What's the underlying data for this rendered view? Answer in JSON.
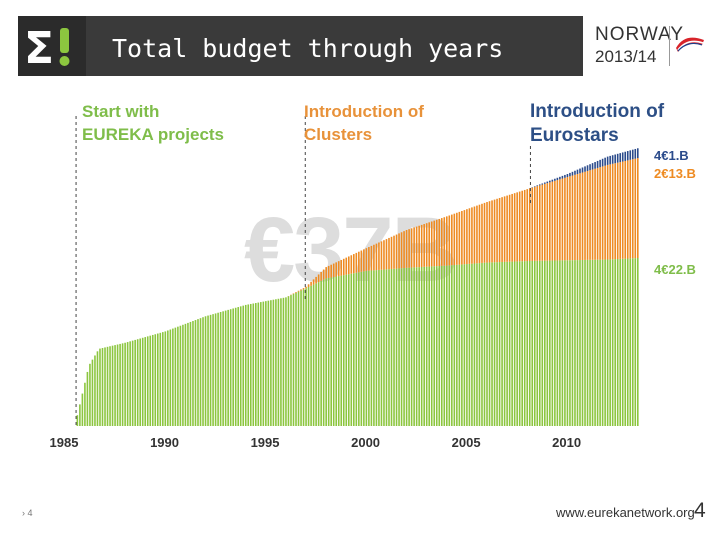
{
  "header": {
    "title": "Total budget through years",
    "brand_country": "NORWAY",
    "brand_year": "2013/14"
  },
  "annotations": {
    "eureka": [
      "Start with",
      "EUREKA projects"
    ],
    "clusters": [
      "Introduction of",
      "Clusters"
    ],
    "eurostars": [
      "Introduction of",
      "Eurostars"
    ]
  },
  "segment_labels": {
    "eurostars": "4€1.B",
    "clusters": "2€13.B",
    "projects": "4€22.B"
  },
  "total_label": "€37B",
  "footer": {
    "left": "› 4",
    "url": "www.eurekanetwork.org",
    "page": "4"
  },
  "colors": {
    "projects": "#8cc63f",
    "clusters": "#ee8b22",
    "eurostars": "#2b4b8b",
    "axis_text": "#333333"
  },
  "chart_data": {
    "type": "bar",
    "title": "Total budget through years",
    "stacked": true,
    "cumulative": true,
    "x_ticks": [
      1985,
      1990,
      1995,
      2000,
      2005,
      2010
    ],
    "x_range": [
      1985,
      2013.5
    ],
    "ylim": [
      0,
      37
    ],
    "unit": "€ billion (cumulative)",
    "events": [
      {
        "label": "Start with EUREKA projects",
        "year": 1985.6
      },
      {
        "label": "Introduction of Clusters",
        "year": 1997.0
      },
      {
        "label": "Introduction of Eurostars",
        "year": 2008.2
      }
    ],
    "knots": {
      "years": [
        1985.5,
        1986.2,
        1986.7,
        1988,
        1990,
        1992,
        1994,
        1996,
        1997,
        1998,
        2000,
        2002,
        2004,
        2006,
        2008,
        2010,
        2012,
        2013.5
      ],
      "projects": [
        0,
        8,
        10.2,
        11,
        12.5,
        14.5,
        16,
        17,
        18.2,
        19.5,
        20.5,
        20.9,
        21.2,
        21.6,
        21.8,
        21.9,
        22,
        22.2
      ],
      "clusters": [
        0,
        0,
        0,
        0,
        0,
        0,
        0,
        0,
        0.2,
        1.5,
        3,
        5,
        6.5,
        8,
        9.5,
        11,
        12.5,
        13.2
      ],
      "eurostars": [
        0,
        0,
        0,
        0,
        0,
        0,
        0,
        0,
        0,
        0,
        0,
        0,
        0,
        0,
        0,
        0.4,
        1.1,
        1.3
      ]
    },
    "series_names": [
      "EUREKA projects",
      "Clusters",
      "Eurostars"
    ]
  }
}
